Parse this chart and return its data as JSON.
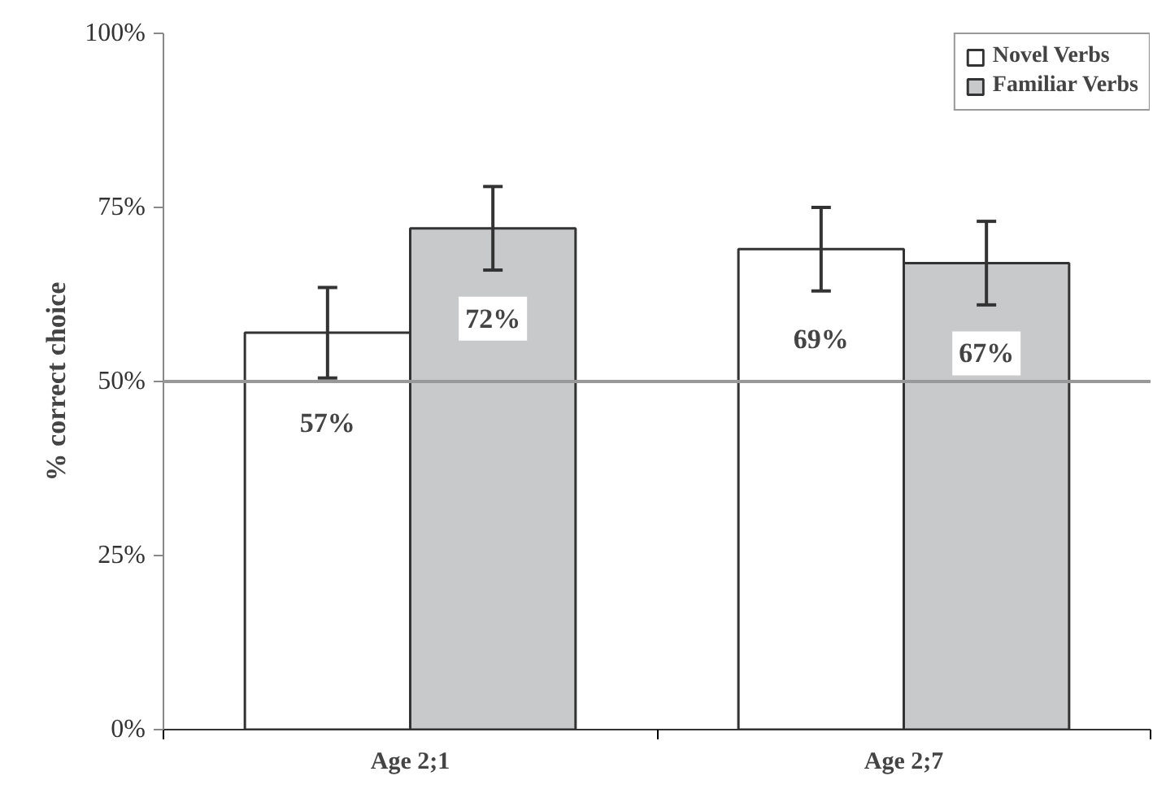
{
  "chart_data": {
    "type": "bar",
    "categories": [
      "Age 2;1",
      "Age 2;7"
    ],
    "ylabel": "% correct choice",
    "series": [
      {
        "name": "Novel Verbs",
        "color": "#ffffff",
        "values": [
          57,
          69
        ],
        "errors": [
          6.5,
          6
        ],
        "value_labels": [
          "57%",
          "69%"
        ]
      },
      {
        "name": "Familiar Verbs",
        "color": "#c8c9cb",
        "values": [
          72,
          67
        ],
        "errors": [
          6,
          6
        ],
        "value_labels": [
          "72%",
          "67%"
        ]
      }
    ],
    "ylim": [
      0,
      100
    ],
    "yticks": [
      {
        "value": 0,
        "label": "0%"
      },
      {
        "value": 25,
        "label": "25%"
      },
      {
        "value": 50,
        "label": "50%"
      },
      {
        "value": 75,
        "label": "75%"
      },
      {
        "value": 100,
        "label": "100%"
      }
    ],
    "ref_lines": [
      {
        "axis": "y",
        "value": 50,
        "label": null,
        "color": "#999999"
      }
    ],
    "legend": "top right",
    "grid": false
  }
}
